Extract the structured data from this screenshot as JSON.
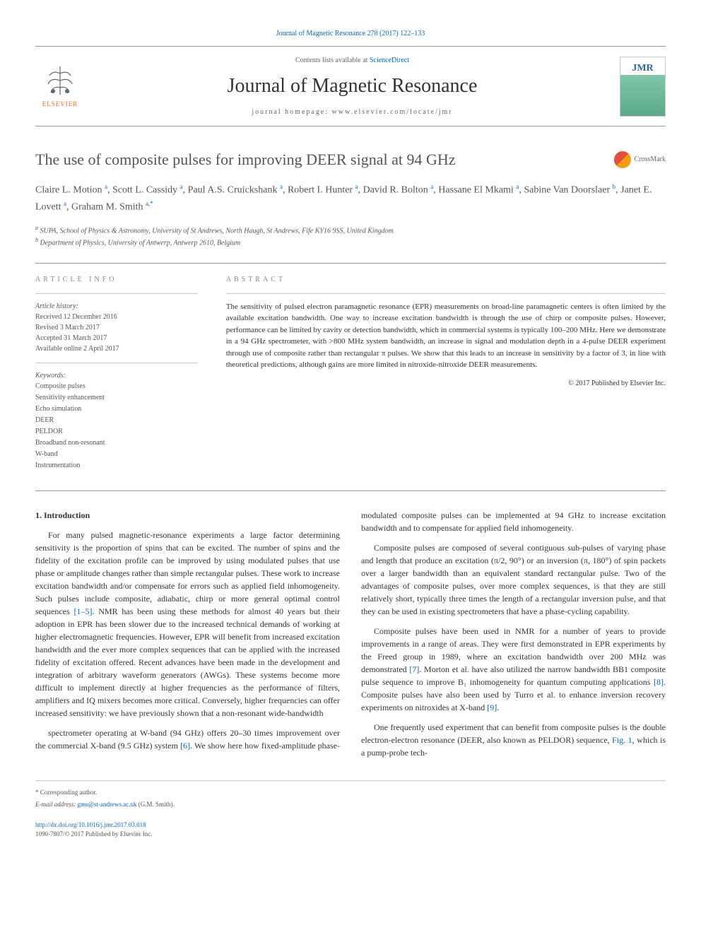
{
  "header": {
    "citation_link": "Journal of Magnetic Resonance 278 (2017) 122–133",
    "contents_line_pre": "Contents lists available at ",
    "contents_line_link": "ScienceDirect",
    "journal_name": "Journal of Magnetic Resonance",
    "homepage_line": "journal homepage: www.elsevier.com/locate/jmr",
    "elsevier_label": "ELSEVIER",
    "jmr_label": "JMR",
    "crossmark_label": "CrossMark"
  },
  "article": {
    "title": "The use of composite pulses for improving DEER signal at 94 GHz",
    "authors_html": "Claire L. Motion <sup>a</sup>, Scott L. Cassidy <sup>a</sup>, Paul A.S. Cruickshank <sup>a</sup>, Robert I. Hunter <sup>a</sup>, David R. Bolton <sup>a</sup>, Hassane El Mkami <sup>a</sup>, Sabine Van Doorslaer <sup>b</sup>, Janet E. Lovett <sup>a</sup>, Graham M. Smith <sup>a,*</sup>",
    "affil_a": "a SUPA, School of Physics & Astronomy, University of St Andrews, North Haugh, St Andrews, Fife KY16 9SS, United Kingdom",
    "affil_b": "b Department of Physics, University of Antwerp, Antwerp 2610, Belgium"
  },
  "info": {
    "header": "ARTICLE INFO",
    "history_label": "Article history:",
    "history": {
      "received": "Received 12 December 2016",
      "revised": "Revised 3 March 2017",
      "accepted": "Accepted 31 March 2017",
      "online": "Available online 2 April 2017"
    },
    "keywords_label": "Keywords:",
    "keywords": [
      "Composite pulses",
      "Sensitivity enhancement",
      "Echo simulation",
      "DEER",
      "PELDOR",
      "Broadband non-resonant",
      "W-band",
      "Instrumentation"
    ]
  },
  "abstract": {
    "header": "ABSTRACT",
    "text": "The sensitivity of pulsed electron paramagnetic resonance (EPR) measurements on broad-line paramagnetic centers is often limited by the available excitation bandwidth. One way to increase excitation bandwidth is through the use of chirp or composite pulses. However, performance can be limited by cavity or detection bandwidth, which in commercial systems is typically 100–200 MHz. Here we demonstrate in a 94 GHz spectrometer, with >800 MHz system bandwidth, an increase in signal and modulation depth in a 4-pulse DEER experiment through use of composite rather than rectangular π pulses. We show that this leads to an increase in sensitivity by a factor of 3, in line with theoretical predictions, although gains are more limited in nitroxide-nitroxide DEER measurements.",
    "copyright": "© 2017 Published by Elsevier Inc."
  },
  "body": {
    "section1_heading": "1. Introduction",
    "p1": "For many pulsed magnetic-resonance experiments a large factor determining sensitivity is the proportion of spins that can be excited. The number of spins and the fidelity of the excitation profile can be improved by using modulated pulses that use phase or amplitude changes rather than simple rectangular pulses. These work to increase excitation bandwidth and/or compensate for errors such as applied field inhomogeneity. Such pulses include composite, adiabatic, chirp or more general optimal control sequences ",
    "ref1": "[1–5]",
    "p1b": ". NMR has been using these methods for almost 40 years but their adoption in EPR has been slower due to the increased technical demands of working at higher electromagnetic frequencies. However, EPR will benefit from increased excitation bandwidth and the ever more complex sequences that can be applied with the increased fidelity of excitation offered. Recent advances have been made in the development and integration of arbitrary waveform generators (AWGs). These systems become more difficult to implement directly at higher frequencies as the performance of filters, amplifiers and IQ mixers becomes more critical. Conversely, higher frequencies can offer increased sensitivity: we have previously shown that a non-resonant wide-bandwidth",
    "p2a": "spectrometer operating at W-band (94 GHz) offers 20–30 times improvement over the commercial X-band (9.5 GHz) system ",
    "ref6": "[6]",
    "p2b": ". We show here how fixed-amplitude phase-modulated composite pulses can be implemented at 94 GHz to increase excitation bandwidth and to compensate for applied field inhomogeneity.",
    "p3": "Composite pulses are composed of several contiguous sub-pulses of varying phase and length that produce an excitation (π/2, 90°) or an inversion (π, 180°) of spin packets over a larger bandwidth than an equivalent standard rectangular pulse. Two of the advantages of composite pulses, over more complex sequences, is that they are still relatively short, typically three times the length of a rectangular inversion pulse, and that they can be used in existing spectrometers that have a phase-cycling capability.",
    "p4a": "Composite pulses have been used in NMR for a number of years to provide improvements in a range of areas. They were first demonstrated in EPR experiments by the Freed group in 1989, where an excitation bandwidth over 200 MHz was demonstrated ",
    "ref7": "[7]",
    "p4b": ". Morton et al. have also utilized the narrow bandwidth BB1 composite pulse sequence to improve B₁ inhomogeneity for quantum computing applications ",
    "ref8": "[8]",
    "p4c": ". Composite pulses have also been used by Turro et al. to enhance inversion recovery experiments on nitroxides at X-band ",
    "ref9": "[9]",
    "p4d": ".",
    "p5a": "One frequently used experiment that can benefit from composite pulses is the double electron-electron resonance (DEER, also known as PELDOR) sequence, ",
    "fig1": "Fig. 1",
    "p5b": ", which is a pump-probe tech-"
  },
  "footer": {
    "corr_marker": "* Corresponding author.",
    "email_label": "E-mail address: ",
    "email": "gms@st-andrews.ac.uk",
    "email_name": " (G.M. Smith).",
    "doi": "http://dx.doi.org/10.1016/j.jmr.2017.03.018",
    "issn": "1090-7807/© 2017 Published by Elsevier Inc."
  },
  "colors": {
    "link": "#0066cc",
    "elsevier_orange": "#ff6600",
    "text": "#333333",
    "muted": "#555555",
    "border": "#999999"
  }
}
